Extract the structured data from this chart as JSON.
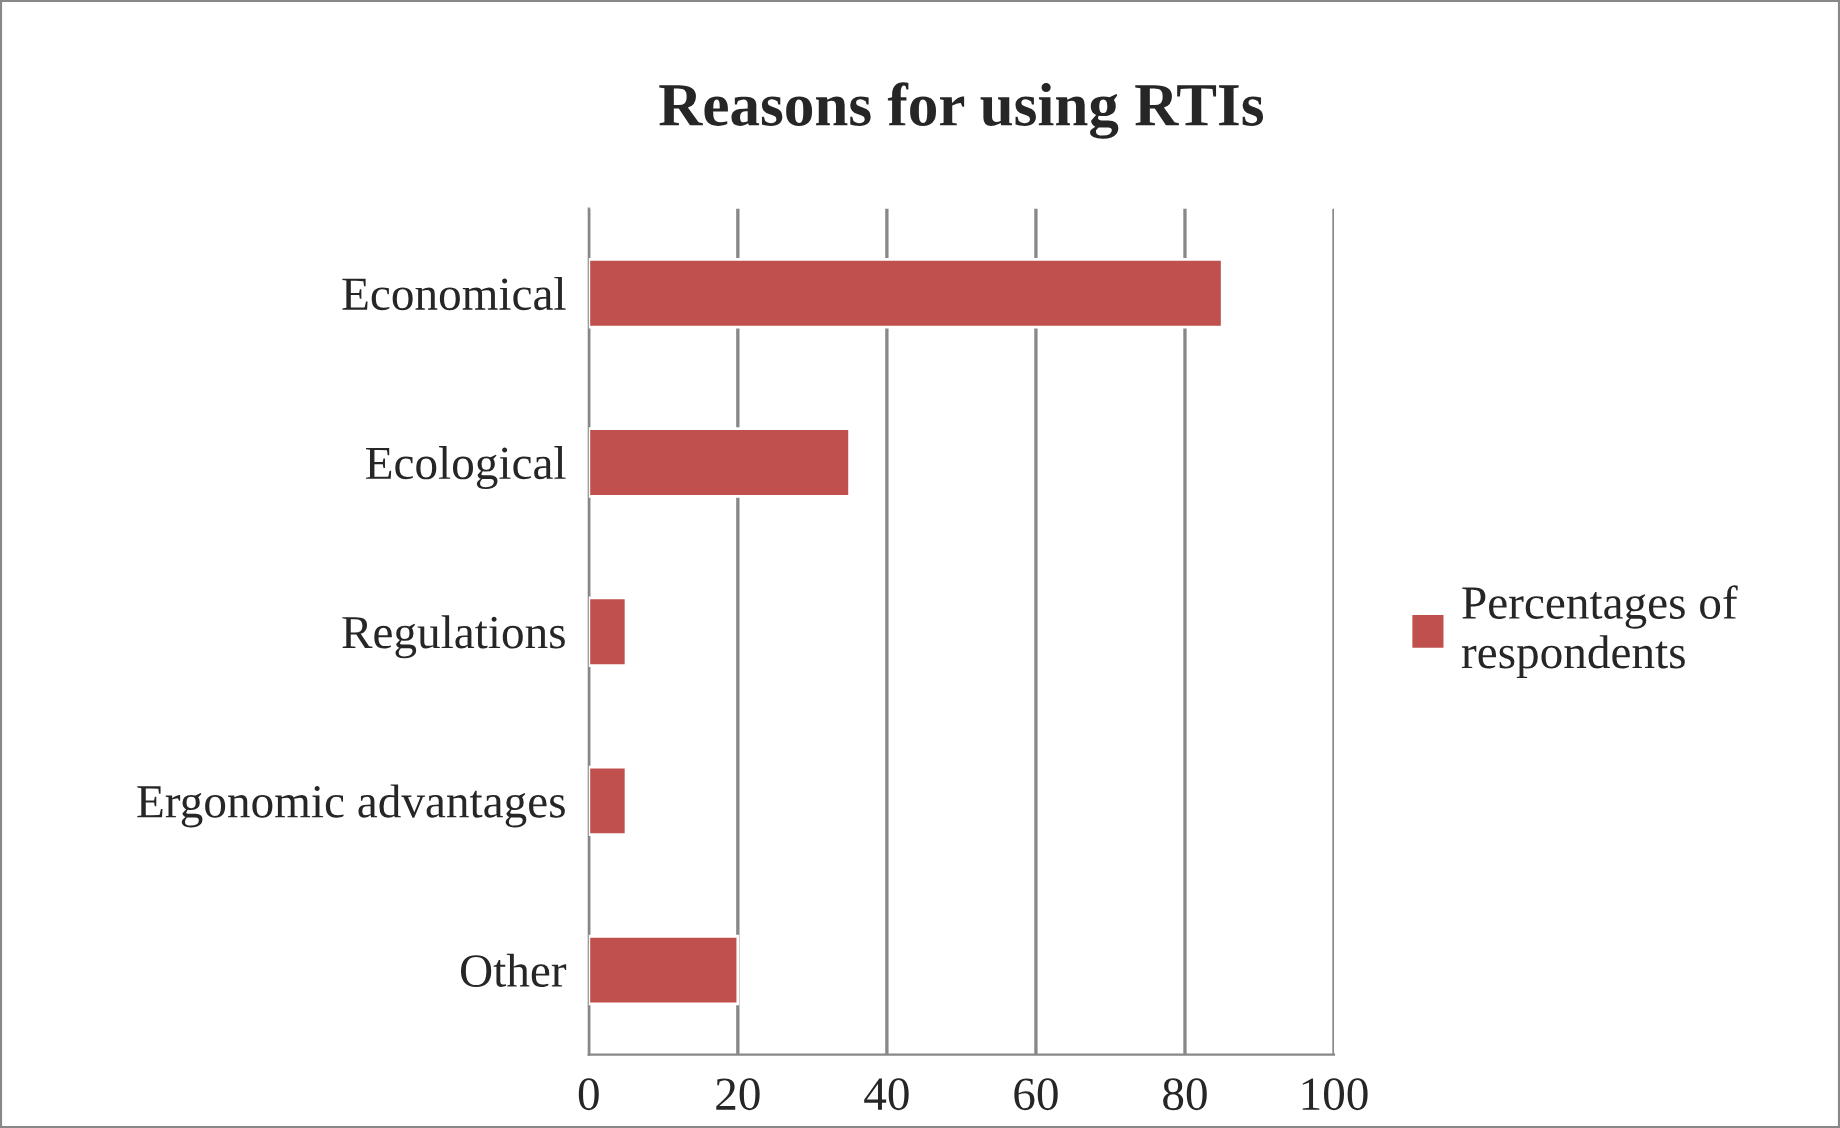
{
  "chart_data": {
    "type": "bar",
    "orientation": "horizontal",
    "title": "Reasons for using RTIs",
    "categories": [
      "Economical",
      "Ecological",
      "Regulations",
      "Ergonomic advantages",
      "Other"
    ],
    "series": [
      {
        "name": "Percentages of respondents",
        "color": "#c0504d",
        "values": [
          85,
          35,
          5,
          5,
          20
        ]
      }
    ],
    "xlim": [
      0,
      100
    ],
    "xticks": [
      0,
      20,
      40,
      60,
      80,
      100
    ],
    "grid": "x",
    "legend": "right"
  }
}
